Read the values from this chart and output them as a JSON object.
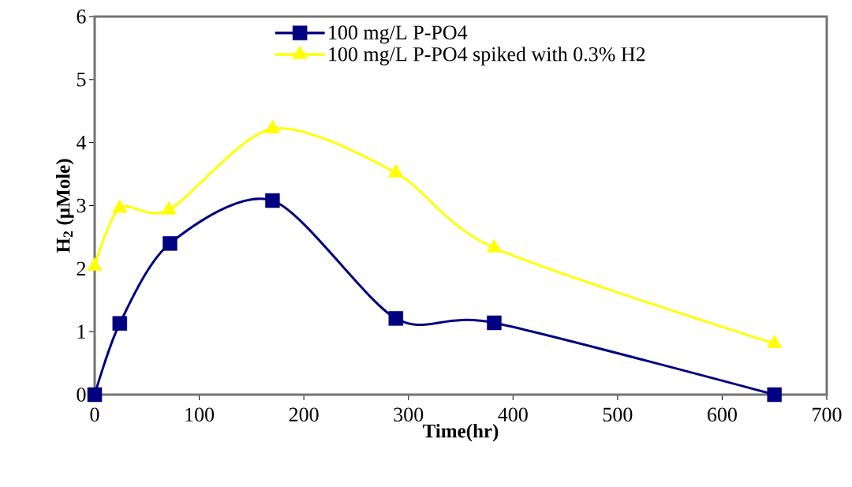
{
  "chart_data": {
    "type": "line",
    "xlabel": "Time(hr)",
    "ylabel": "H$_{2}$ (µMole)",
    "xlim": [
      0,
      700
    ],
    "xticks": [
      0,
      100,
      200,
      300,
      400,
      500,
      600,
      700
    ],
    "ylim": [
      0,
      6
    ],
    "yticks": [
      0,
      1,
      2,
      3,
      4,
      5,
      6
    ],
    "grid": false,
    "legend": "top",
    "line_style": "solid",
    "series": [
      {
        "name": "100 mg/L P-PO4",
        "color": "#000080",
        "marker": "square",
        "x": [
          0,
          24,
          72,
          170,
          288,
          382,
          650
        ],
        "values": [
          0,
          1.13,
          2.4,
          3.08,
          1.21,
          1.14,
          0
        ]
      },
      {
        "name": "100 mg/L P-PO4 spiked with 0.3% H2",
        "color": "#ffff00",
        "marker": "triangle",
        "x": [
          0,
          24,
          71,
          170,
          288,
          382,
          650
        ],
        "values": [
          2.04,
          2.96,
          2.93,
          4.22,
          3.52,
          2.33,
          0.81
        ]
      }
    ]
  }
}
